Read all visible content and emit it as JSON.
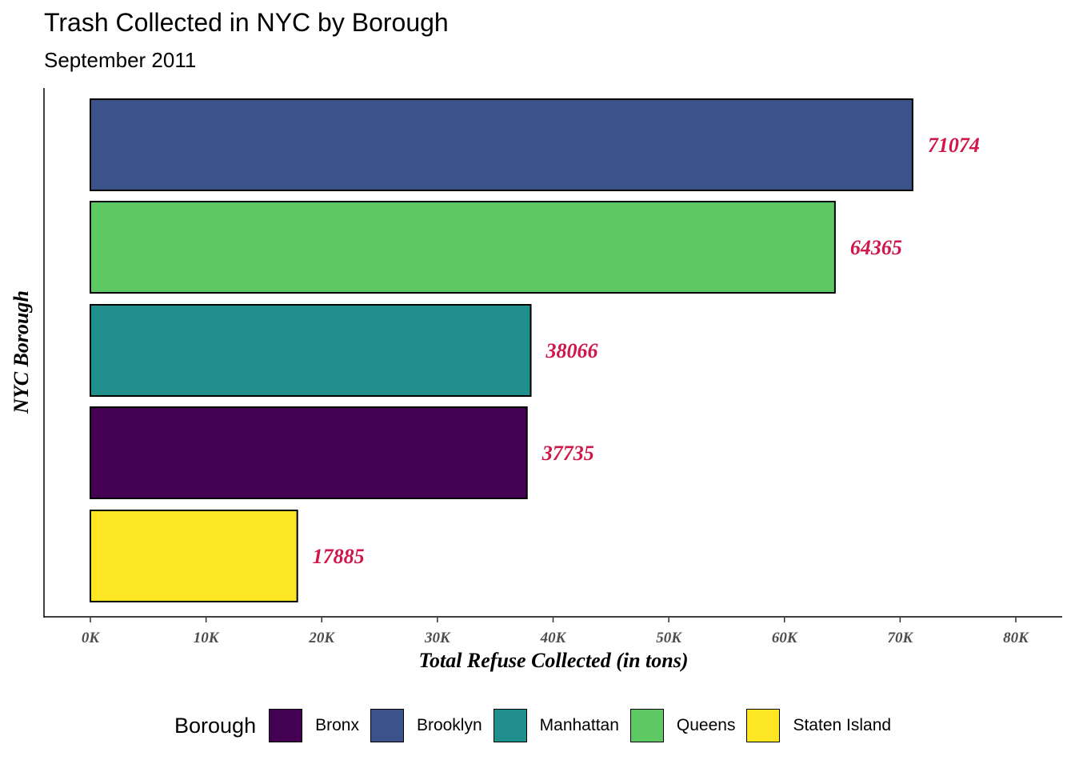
{
  "chart_data": {
    "type": "bar",
    "orientation": "horizontal",
    "title": "Trash Collected in NYC by Borough",
    "subtitle": "September 2011",
    "xlabel": "Total Refuse Collected (in tons)",
    "ylabel": "NYC Borough",
    "xlim": [
      0,
      80000
    ],
    "xticks": [
      {
        "value": 0,
        "label": "0K"
      },
      {
        "value": 10000,
        "label": "10K"
      },
      {
        "value": 20000,
        "label": "20K"
      },
      {
        "value": 30000,
        "label": "30K"
      },
      {
        "value": 40000,
        "label": "40K"
      },
      {
        "value": 50000,
        "label": "50K"
      },
      {
        "value": 60000,
        "label": "60K"
      },
      {
        "value": 70000,
        "label": "70K"
      },
      {
        "value": 80000,
        "label": "80K"
      }
    ],
    "bars": [
      {
        "category": "Brooklyn",
        "value": 71074,
        "label": "71074",
        "color": "#3b528b"
      },
      {
        "category": "Queens",
        "value": 64365,
        "label": "64365",
        "color": "#5ec962"
      },
      {
        "category": "Manhattan",
        "value": 38066,
        "label": "38066",
        "color": "#21908d"
      },
      {
        "category": "Bronx",
        "value": 37735,
        "label": "37735",
        "color": "#440154"
      },
      {
        "category": "Staten Island",
        "value": 17885,
        "label": "17885",
        "color": "#fde725"
      }
    ],
    "value_label_color": "#d0164a",
    "grid": false,
    "legend": {
      "position": "bottom",
      "title": "Borough",
      "items": [
        {
          "label": "Bronx",
          "color": "#440154"
        },
        {
          "label": "Brooklyn",
          "color": "#3b528b"
        },
        {
          "label": "Manhattan",
          "color": "#21908d"
        },
        {
          "label": "Queens",
          "color": "#5ec962"
        },
        {
          "label": "Staten Island",
          "color": "#fde725"
        }
      ]
    }
  }
}
